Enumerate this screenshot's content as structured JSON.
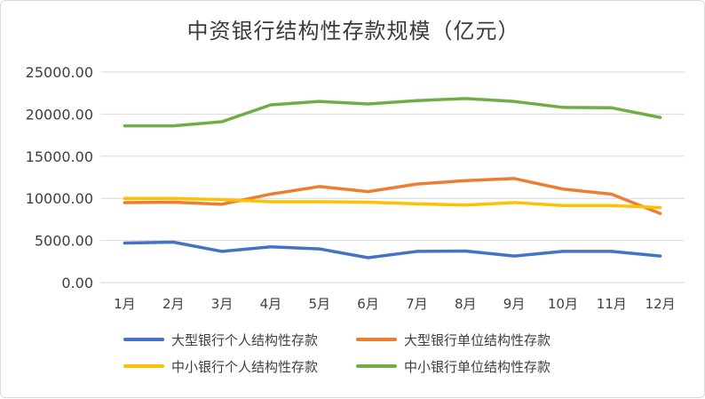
{
  "chart_data": {
    "type": "line",
    "title": "中资银行结构性存款规模（亿元）",
    "xlabel": "",
    "ylabel": "",
    "categories": [
      "1月",
      "2月",
      "3月",
      "4月",
      "5月",
      "6月",
      "7月",
      "8月",
      "9月",
      "10月",
      "11月",
      "12月"
    ],
    "yticks": [
      "0.00",
      "5000.00",
      "10000.00",
      "15000.00",
      "20000.00",
      "25000.00"
    ],
    "ylim": [
      0,
      25000
    ],
    "grid": true,
    "legend_position": "bottom",
    "series": [
      {
        "name": "大型银行个人结构性存款",
        "color": "#4472c4",
        "values": [
          4700,
          4800,
          3700,
          4250,
          4000,
          2950,
          3700,
          3750,
          3150,
          3700,
          3700,
          3150
        ]
      },
      {
        "name": "大型银行单位结构性存款",
        "color": "#ed7d31",
        "values": [
          9500,
          9550,
          9300,
          10500,
          11400,
          10800,
          11700,
          12100,
          12350,
          11100,
          10500,
          8200
        ]
      },
      {
        "name": "中小银行个人结构性存款",
        "color": "#ffc000",
        "values": [
          10000,
          10000,
          9850,
          9600,
          9600,
          9550,
          9350,
          9200,
          9500,
          9150,
          9150,
          8900
        ]
      },
      {
        "name": "中小银行单位结构性存款",
        "color": "#70ad47",
        "values": [
          18600,
          18600,
          19100,
          21100,
          21500,
          21200,
          21600,
          21850,
          21500,
          20800,
          20750,
          19600
        ]
      }
    ]
  }
}
